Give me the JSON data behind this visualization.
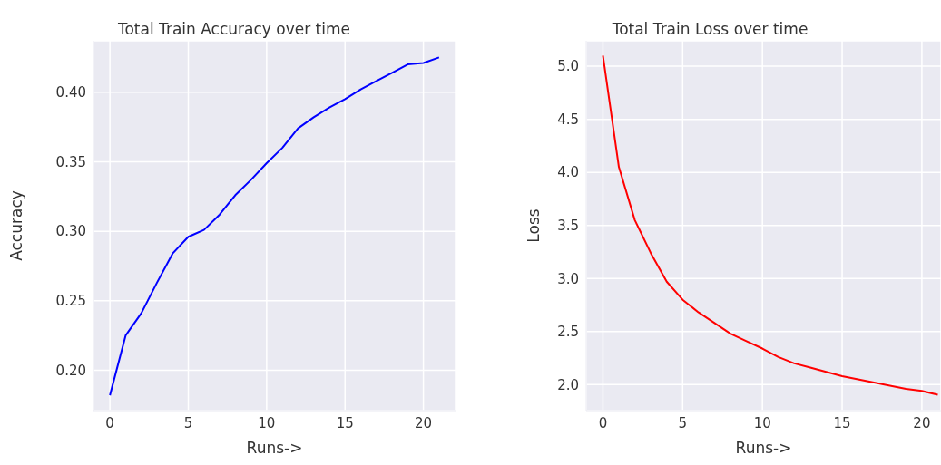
{
  "chart_data": [
    {
      "type": "line",
      "title": "Total Train Accuracy over time",
      "xlabel": "Runs->",
      "ylabel": "Accuracy",
      "x": [
        0,
        1,
        2,
        3,
        4,
        5,
        6,
        7,
        8,
        9,
        10,
        11,
        12,
        13,
        14,
        15,
        16,
        17,
        18,
        19,
        20,
        21
      ],
      "series": [
        {
          "color": "#0000ff",
          "values": [
            0.182,
            0.225,
            0.241,
            0.263,
            0.284,
            0.296,
            0.301,
            0.312,
            0.326,
            0.337,
            0.349,
            0.36,
            0.374,
            0.382,
            0.389,
            0.395,
            0.402,
            0.408,
            0.414,
            0.42,
            0.421,
            0.425
          ]
        }
      ],
      "xlim": [
        -1.05,
        22.05
      ],
      "ylim": [
        0.171,
        0.437
      ],
      "xticks": [
        0,
        5,
        10,
        15,
        20
      ],
      "yticks": [
        {
          "value": 0.2,
          "label": "0.20"
        },
        {
          "value": 0.25,
          "label": "0.25"
        },
        {
          "value": 0.3,
          "label": "0.30"
        },
        {
          "value": 0.35,
          "label": "0.35"
        },
        {
          "value": 0.4,
          "label": "0.40"
        }
      ],
      "grid": true
    },
    {
      "type": "line",
      "title": "Total Train Loss over time",
      "xlabel": "Runs->",
      "ylabel": "Loss",
      "x": [
        0,
        1,
        2,
        3,
        4,
        5,
        6,
        7,
        8,
        9,
        10,
        11,
        12,
        13,
        14,
        15,
        16,
        17,
        18,
        19,
        20,
        21
      ],
      "series": [
        {
          "color": "#ff0000",
          "values": [
            5.1,
            4.05,
            3.55,
            3.24,
            2.97,
            2.8,
            2.68,
            2.58,
            2.48,
            2.41,
            2.34,
            2.26,
            2.2,
            2.16,
            2.12,
            2.08,
            2.05,
            2.02,
            1.99,
            1.96,
            1.94,
            1.905
          ]
        }
      ],
      "xlim": [
        -1.05,
        21.2
      ],
      "ylim": [
        1.755,
        5.24
      ],
      "xticks": [
        0,
        5,
        10,
        15,
        20
      ],
      "yticks": [
        {
          "value": 2,
          "label": "2.0"
        },
        {
          "value": 2.5,
          "label": "2.5"
        },
        {
          "value": 3,
          "label": "3.0"
        },
        {
          "value": 3.5,
          "label": "3.5"
        },
        {
          "value": 4,
          "label": "4.0"
        },
        {
          "value": 4.5,
          "label": "4.5"
        },
        {
          "value": 5,
          "label": "5.0"
        }
      ],
      "grid": true
    }
  ]
}
